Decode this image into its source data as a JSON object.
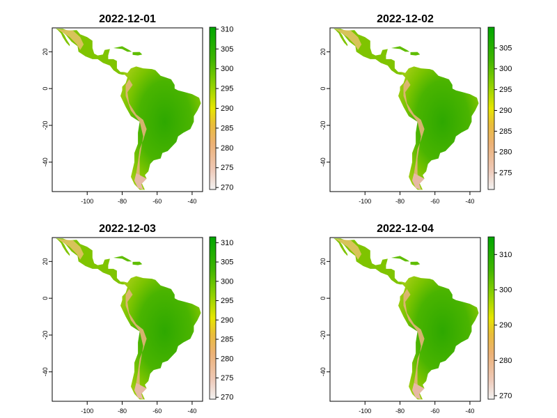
{
  "figure": {
    "x_ticks": [
      -100,
      -80,
      -60,
      -40
    ],
    "y_ticks": [
      20,
      0,
      -20,
      -40
    ],
    "x_range": [
      -120,
      -34
    ],
    "y_range": [
      -56,
      33
    ],
    "colors": {
      "high": "#00a600",
      "mid_high": "#63c600",
      "mid": "#e6e600",
      "mid_low": "#e9bd3a",
      "low": "#ecb176",
      "lowest": "#f2f2f2"
    }
  },
  "panels": [
    {
      "title": "2022-12-01",
      "legend_ticks": [
        310,
        305,
        300,
        295,
        290,
        285,
        280,
        275,
        270
      ],
      "legend_range": [
        269.5,
        310.5
      ]
    },
    {
      "title": "2022-12-02",
      "legend_ticks": [
        305,
        300,
        295,
        290,
        285,
        280,
        275
      ],
      "legend_range": [
        271,
        310
      ]
    },
    {
      "title": "2022-12-03",
      "legend_ticks": [
        310,
        305,
        300,
        295,
        290,
        285,
        280,
        275,
        270
      ],
      "legend_range": [
        269.5,
        311.5
      ]
    },
    {
      "title": "2022-12-04",
      "legend_ticks": [
        310,
        300,
        290,
        280,
        270
      ],
      "legend_range": [
        269,
        315
      ]
    }
  ]
}
